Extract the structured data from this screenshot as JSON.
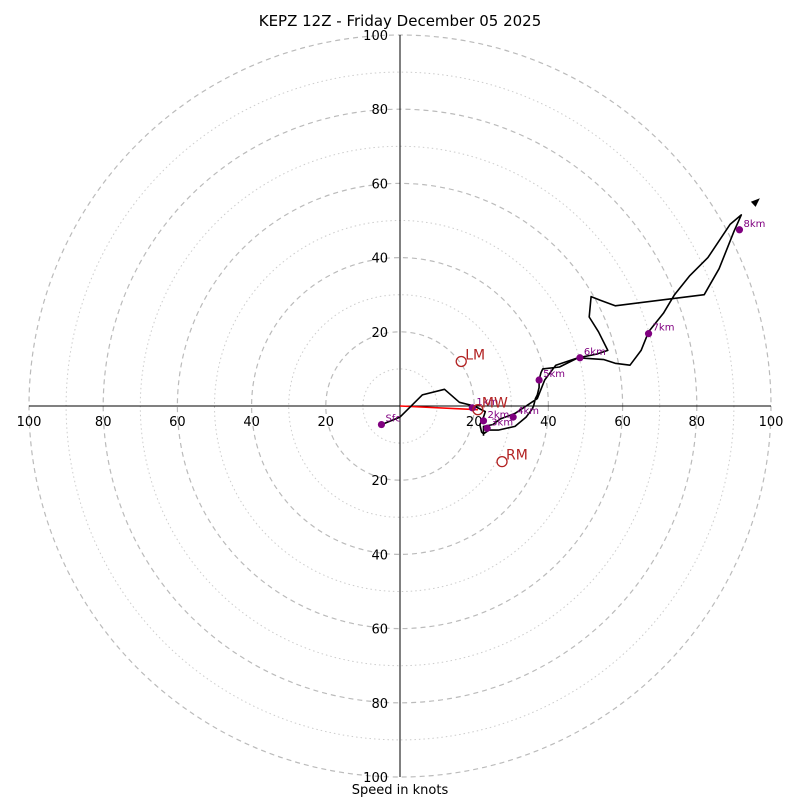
{
  "chart_data": {
    "type": "hodograph",
    "title": "KEPZ 12Z - Friday December 05 2025",
    "xlabel": "Speed in knots",
    "ylabel": "",
    "xlim": [
      -100,
      100
    ],
    "ylim": [
      -100,
      100
    ],
    "units": "knots",
    "rings_major": [
      20,
      40,
      60,
      80,
      100
    ],
    "rings_minor": [
      10,
      30,
      50,
      70,
      90
    ],
    "x_tick_labels": [
      "100",
      "80",
      "60",
      "40",
      "20",
      "20",
      "40",
      "60",
      "80",
      "100"
    ],
    "x_tick_values": [
      -100,
      -80,
      -60,
      -40,
      -20,
      20,
      40,
      60,
      80,
      100
    ],
    "y_tick_labels": [
      "100",
      "80",
      "60",
      "40",
      "20",
      "20",
      "40",
      "60",
      "80",
      "100"
    ],
    "y_tick_values": [
      100,
      80,
      60,
      40,
      20,
      -20,
      -40,
      -60,
      -80,
      -100
    ],
    "hodograph_trace": [
      [
        -5,
        -5
      ],
      [
        0,
        -3
      ],
      [
        6,
        3
      ],
      [
        12,
        4.5
      ],
      [
        16,
        1
      ],
      [
        20,
        0
      ],
      [
        23,
        -1.5
      ],
      [
        22.5,
        -3
      ],
      [
        21.5,
        -5
      ],
      [
        22,
        -7
      ],
      [
        22.5,
        -7.5
      ],
      [
        24,
        -6.5
      ],
      [
        26.5,
        -6.5
      ],
      [
        31,
        -5.5
      ],
      [
        34,
        -3
      ],
      [
        35.5,
        -1
      ],
      [
        36,
        0
      ],
      [
        36.5,
        2
      ],
      [
        37,
        3
      ],
      [
        37.5,
        5
      ],
      [
        37.5,
        7
      ],
      [
        38,
        9
      ],
      [
        38.5,
        10
      ],
      [
        43,
        10.5
      ],
      [
        48,
        13
      ],
      [
        53,
        14
      ],
      [
        56,
        15
      ],
      [
        53.5,
        20
      ],
      [
        51,
        24
      ],
      [
        51.5,
        29.5
      ],
      [
        54,
        28.5
      ],
      [
        58,
        27
      ],
      [
        82,
        30
      ],
      [
        86,
        37
      ],
      [
        90,
        47
      ],
      [
        92,
        51.5
      ],
      [
        89,
        49
      ],
      [
        83,
        40
      ],
      [
        78,
        35
      ],
      [
        74,
        30
      ],
      [
        71,
        25
      ],
      [
        67,
        20
      ],
      [
        65,
        15
      ],
      [
        62,
        11
      ],
      [
        58,
        11.5
      ],
      [
        55,
        12.5
      ],
      [
        48,
        13
      ],
      [
        42,
        11
      ],
      [
        39,
        7
      ],
      [
        37,
        2
      ],
      [
        31,
        -2
      ],
      [
        27,
        -3.5
      ],
      [
        25,
        -5
      ],
      [
        22.5,
        -5.5
      ],
      [
        22.5,
        -8
      ]
    ],
    "height_labels": [
      {
        "label": "Sfc",
        "u": -5,
        "v": -5
      },
      {
        "label": "1km",
        "u": 19.5,
        "v": -0.5
      },
      {
        "label": "2km",
        "u": 22.5,
        "v": -4
      },
      {
        "label": "3km",
        "u": 23.5,
        "v": -6
      },
      {
        "label": "4km",
        "u": 30.5,
        "v": -3
      },
      {
        "label": "5km",
        "u": 37.5,
        "v": 7
      },
      {
        "label": "6km",
        "u": 48.5,
        "v": 13
      },
      {
        "label": "7km",
        "u": 67,
        "v": 19.5
      },
      {
        "label": "8km",
        "u": 91.5,
        "v": 47.5
      }
    ],
    "storm_motion_points": [
      {
        "label": "LM",
        "u": 16.5,
        "v": 12
      },
      {
        "label": "MW",
        "u": 21,
        "v": -1
      },
      {
        "label": "RM",
        "u": 27.5,
        "v": -15
      }
    ],
    "red_vector": {
      "from": [
        0,
        0
      ],
      "to": [
        21,
        -1
      ]
    },
    "colors": {
      "trace": "#000000",
      "height_point": "#800080",
      "storm_motion": "#b22222",
      "vector": "#ff0000",
      "grid": "#bbbbbb"
    }
  }
}
